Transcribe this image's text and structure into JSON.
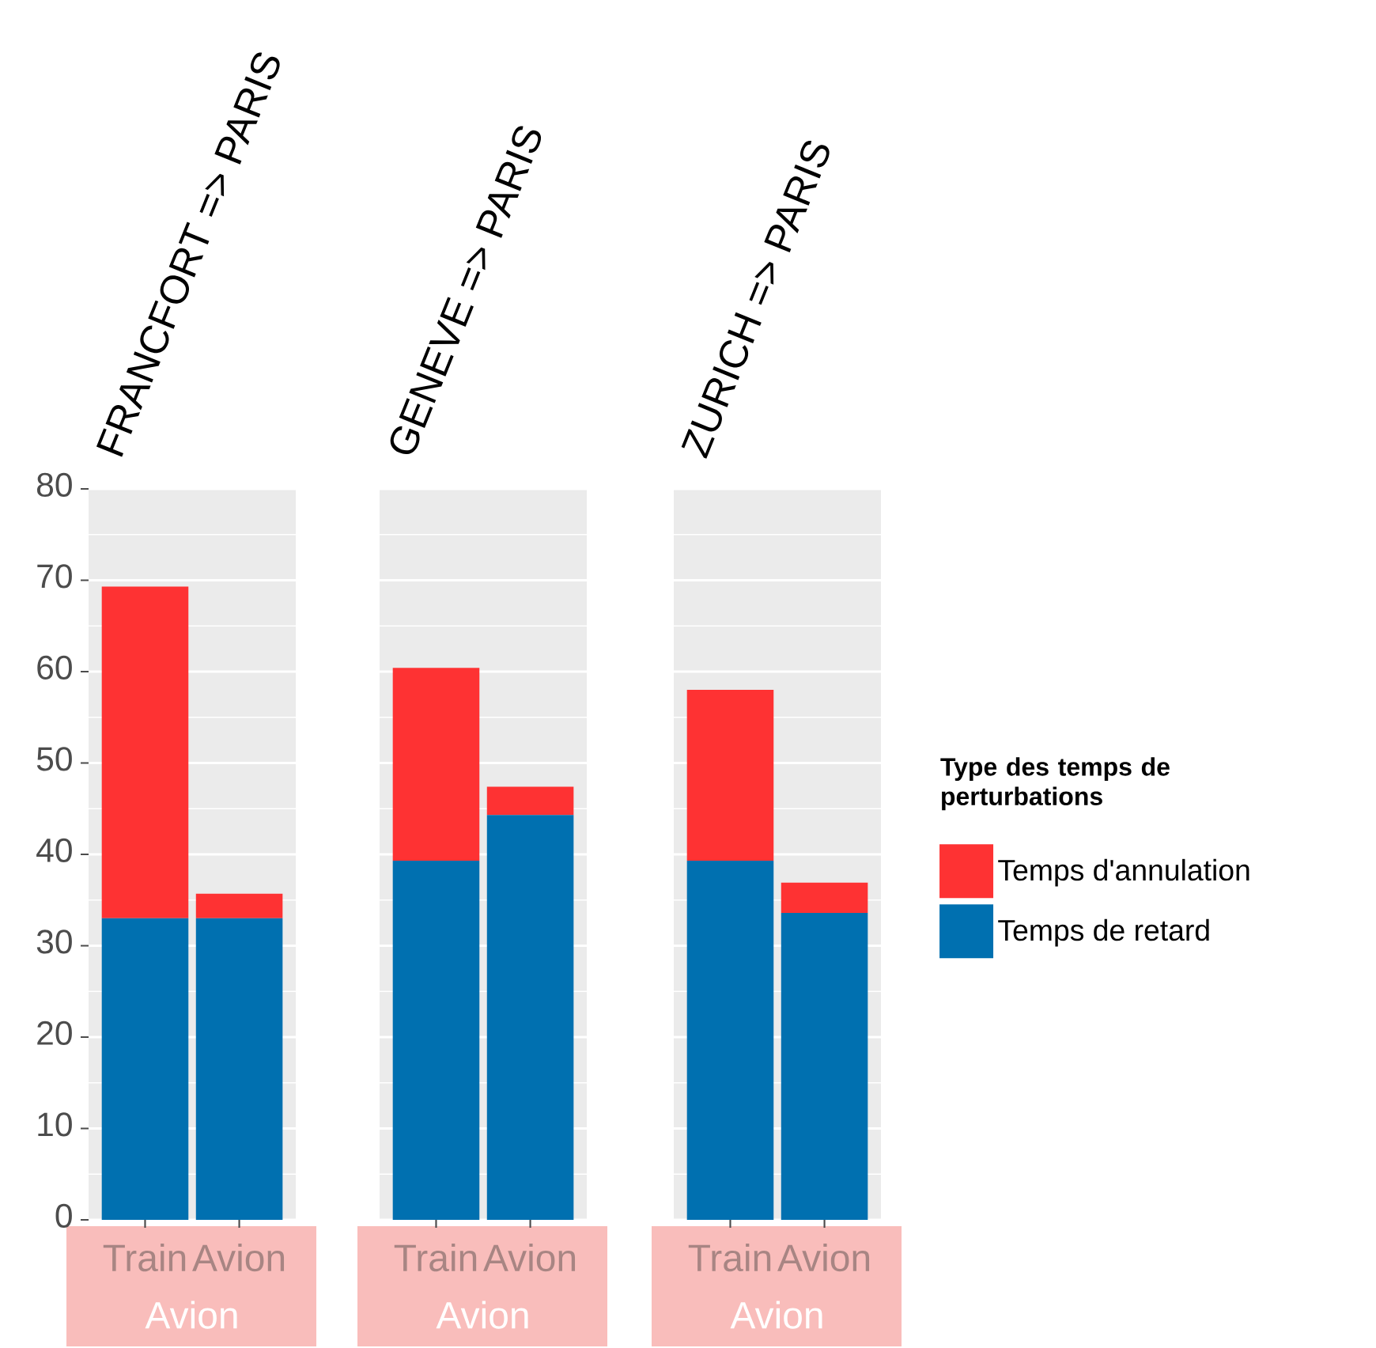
{
  "chart_data": [
    {
      "type": "bar",
      "stacked": true,
      "title": "FRANCFORT => PARIS",
      "xlabel": "Avion",
      "categories": [
        "Train",
        "Avion"
      ],
      "series": [
        {
          "color": "#0070b0",
          "values": [
            33,
            33
          ]
        },
        {
          "color": "#fe3233",
          "values": [
            36.3,
            2.7
          ]
        }
      ],
      "ylim": [
        0,
        80
      ],
      "yticks": [
        0,
        10,
        20,
        30,
        40,
        50,
        60,
        70,
        80
      ],
      "grid": "y"
    },
    {
      "type": "bar",
      "stacked": true,
      "title": "GENEVE => PARIS",
      "xlabel": "Avion",
      "categories": [
        "Train",
        "Avion"
      ],
      "series": [
        {
          "color": "#0070b0",
          "values": [
            39.3,
            44.3
          ]
        },
        {
          "color": "#fe3233",
          "values": [
            21.1,
            3.1
          ]
        }
      ],
      "ylim": [
        0,
        80
      ],
      "yticks": [
        0,
        10,
        20,
        30,
        40,
        50,
        60,
        70,
        80
      ],
      "grid": "y",
      "tick_labels": "x"
    },
    {
      "type": "bar",
      "stacked": true,
      "title": "ZURICH => PARIS",
      "xlabel": "Avion",
      "categories": [
        "Train",
        "Avion"
      ],
      "series": [
        {
          "name": "Temps de retard",
          "color": "#0070b0",
          "values": [
            39.3,
            33.6
          ]
        },
        {
          "name": "Temps d'annulation",
          "color": "#fe3233",
          "values": [
            18.7,
            3.3
          ]
        }
      ],
      "ylim": [
        0,
        80
      ],
      "yticks": [
        0,
        10,
        20,
        30,
        40,
        50,
        60,
        70,
        80
      ],
      "grid": "y",
      "tick_labels": "x",
      "legend": "right",
      "legend_title": "Type des temps de perturbations"
    }
  ]
}
